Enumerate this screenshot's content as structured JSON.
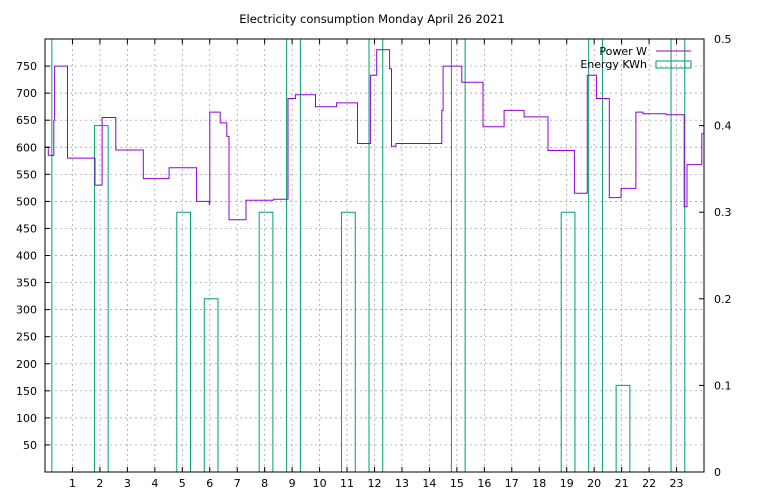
{
  "chart_data": {
    "type": "line",
    "title": "Electricity consumption Monday April 26 2021",
    "xlabel": "",
    "ylabel": "",
    "y2label": "",
    "xlim": [
      0,
      24
    ],
    "ylim": [
      0,
      800
    ],
    "y2lim": [
      0,
      0.5
    ],
    "xticks": [
      1,
      2,
      3,
      4,
      5,
      6,
      7,
      8,
      9,
      10,
      11,
      12,
      13,
      14,
      15,
      16,
      17,
      18,
      19,
      20,
      21,
      22,
      23
    ],
    "yticks": [
      50,
      100,
      150,
      200,
      250,
      300,
      350,
      400,
      450,
      500,
      550,
      600,
      650,
      700,
      750
    ],
    "y2ticks": [
      0,
      0.1,
      0.2,
      0.3,
      0.4,
      0.5
    ],
    "y2tick_labels": [
      "0",
      "0.1",
      "0.2",
      "0.3",
      "0.4",
      "0.5"
    ],
    "grid": true,
    "legend_position": "top-right",
    "colors": {
      "power": "#9400d3",
      "energy": "#009e73"
    },
    "series": [
      {
        "name": "Power W",
        "axis": "y",
        "style": "steps",
        "points": [
          [
            0.0,
            600
          ],
          [
            0.12,
            585
          ],
          [
            0.32,
            650
          ],
          [
            0.35,
            750
          ],
          [
            0.82,
            580
          ],
          [
            1.82,
            530
          ],
          [
            2.08,
            655
          ],
          [
            2.58,
            595
          ],
          [
            3.58,
            542
          ],
          [
            4.52,
            562
          ],
          [
            5.52,
            500
          ],
          [
            5.98,
            495
          ],
          [
            6.0,
            665
          ],
          [
            6.38,
            645
          ],
          [
            6.62,
            620
          ],
          [
            6.7,
            466
          ],
          [
            7.32,
            502
          ],
          [
            8.32,
            504
          ],
          [
            8.85,
            690
          ],
          [
            9.12,
            697
          ],
          [
            9.85,
            675
          ],
          [
            10.62,
            682
          ],
          [
            11.38,
            607
          ],
          [
            11.85,
            733
          ],
          [
            12.08,
            780
          ],
          [
            12.55,
            745
          ],
          [
            12.62,
            602
          ],
          [
            12.78,
            607
          ],
          [
            14.45,
            668
          ],
          [
            14.5,
            750
          ],
          [
            15.18,
            720
          ],
          [
            15.95,
            638
          ],
          [
            16.72,
            668
          ],
          [
            17.45,
            656
          ],
          [
            18.32,
            594
          ],
          [
            19.28,
            515
          ],
          [
            19.75,
            733
          ],
          [
            20.08,
            690
          ],
          [
            20.55,
            507
          ],
          [
            20.98,
            524
          ],
          [
            21.52,
            665
          ],
          [
            21.78,
            662
          ],
          [
            22.62,
            660
          ],
          [
            23.28,
            490
          ],
          [
            23.38,
            568
          ],
          [
            23.92,
            625
          ],
          [
            24.0,
            733
          ]
        ]
      },
      {
        "name": "Energy KWh",
        "axis": "y2",
        "style": "impulse-boxes",
        "boxes": [
          [
            0.0,
            0.25,
            0.5
          ],
          [
            1.8,
            2.3,
            0.4
          ],
          [
            4.8,
            5.3,
            0.3
          ],
          [
            5.8,
            6.3,
            0.2
          ],
          [
            7.8,
            8.3,
            0.3
          ],
          [
            8.8,
            9.3,
            0.5
          ],
          [
            10.8,
            11.3,
            0.3
          ],
          [
            11.8,
            12.3,
            0.5
          ],
          [
            14.8,
            15.3,
            0.5
          ],
          [
            18.8,
            19.3,
            0.3
          ],
          [
            19.8,
            20.3,
            0.5
          ],
          [
            20.8,
            21.3,
            0.1
          ],
          [
            22.8,
            23.3,
            0.5
          ]
        ]
      }
    ]
  }
}
